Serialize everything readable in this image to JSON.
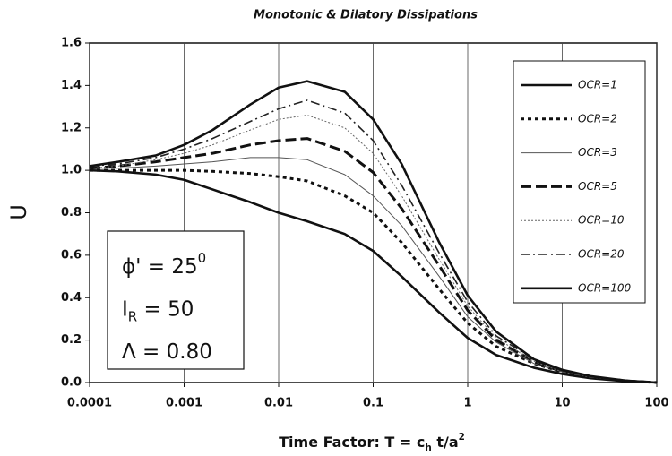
{
  "chart_data": {
    "type": "line",
    "title": "Monotonic & Dilatory Dissipations",
    "ylabel": "U",
    "xlabel": [
      {
        "text": "Time Factor:  T = c"
      },
      {
        "text": "h",
        "script": "sub"
      },
      {
        "text": " t/a"
      },
      {
        "text": "2",
        "script": "sup"
      }
    ],
    "annotations": [
      [
        {
          "text": "ϕ' = 25"
        },
        {
          "text": "0",
          "script": "sup"
        }
      ],
      [
        {
          "text": "I"
        },
        {
          "text": "R",
          "script": "sub"
        },
        {
          "text": " = 50"
        }
      ],
      [
        {
          "text": "Λ = 0.80"
        }
      ]
    ],
    "x": [
      0.0001,
      0.0002,
      0.0005,
      0.001,
      0.002,
      0.005,
      0.01,
      0.02,
      0.05,
      0.1,
      0.2,
      0.5,
      1,
      2,
      5,
      10,
      20,
      50,
      100
    ],
    "series": [
      {
        "name": "OCR=1",
        "color": "#111111",
        "style": "solid-thick",
        "values": [
          1.0,
          0.995,
          0.98,
          0.955,
          0.91,
          0.85,
          0.8,
          0.76,
          0.7,
          0.62,
          0.5,
          0.33,
          0.21,
          0.13,
          0.07,
          0.04,
          0.02,
          0.005,
          0.0
        ]
      },
      {
        "name": "OCR=2",
        "color": "#111111",
        "style": "dotted-thick",
        "values": [
          1.0,
          1.0,
          1.0,
          1.0,
          0.995,
          0.985,
          0.97,
          0.95,
          0.88,
          0.8,
          0.66,
          0.44,
          0.28,
          0.17,
          0.09,
          0.05,
          0.025,
          0.007,
          0.0
        ]
      },
      {
        "name": "OCR=3",
        "color": "#555555",
        "style": "solid-thin",
        "values": [
          1.01,
          1.01,
          1.02,
          1.03,
          1.04,
          1.06,
          1.06,
          1.05,
          0.98,
          0.88,
          0.74,
          0.5,
          0.31,
          0.19,
          0.09,
          0.05,
          0.025,
          0.007,
          0.0
        ]
      },
      {
        "name": "OCR=5",
        "color": "#111111",
        "style": "dashed-thick",
        "values": [
          1.01,
          1.02,
          1.04,
          1.06,
          1.08,
          1.12,
          1.14,
          1.15,
          1.09,
          0.99,
          0.82,
          0.55,
          0.34,
          0.2,
          0.1,
          0.05,
          0.025,
          0.007,
          0.0
        ]
      },
      {
        "name": "OCR=10",
        "color": "#666666",
        "style": "dotted-thin",
        "values": [
          1.01,
          1.02,
          1.05,
          1.08,
          1.12,
          1.19,
          1.24,
          1.26,
          1.2,
          1.08,
          0.88,
          0.58,
          0.36,
          0.21,
          0.1,
          0.05,
          0.025,
          0.007,
          0.0
        ]
      },
      {
        "name": "OCR=20",
        "color": "#222222",
        "style": "dashdot",
        "values": [
          1.02,
          1.03,
          1.06,
          1.1,
          1.15,
          1.23,
          1.29,
          1.33,
          1.27,
          1.14,
          0.93,
          0.61,
          0.38,
          0.22,
          0.11,
          0.055,
          0.027,
          0.008,
          0.0
        ]
      },
      {
        "name": "OCR=100",
        "color": "#111111",
        "style": "solid-thick",
        "values": [
          1.02,
          1.04,
          1.07,
          1.12,
          1.19,
          1.31,
          1.39,
          1.42,
          1.37,
          1.24,
          1.03,
          0.66,
          0.41,
          0.24,
          0.11,
          0.06,
          0.03,
          0.008,
          0.0
        ]
      }
    ],
    "xscale": "log",
    "xlim": [
      0.0001,
      100
    ],
    "xticks": [
      0.0001,
      0.001,
      0.01,
      0.1,
      1,
      10,
      100
    ],
    "ylim": [
      0,
      1.6
    ],
    "yticks": [
      {
        "value": 0,
        "label": "0.0"
      },
      0.2,
      0.4,
      0.6,
      0.8,
      {
        "value": 1,
        "label": "1.0"
      },
      1.2,
      1.4,
      1.6
    ],
    "xgrid": true,
    "legend": "upper right"
  }
}
